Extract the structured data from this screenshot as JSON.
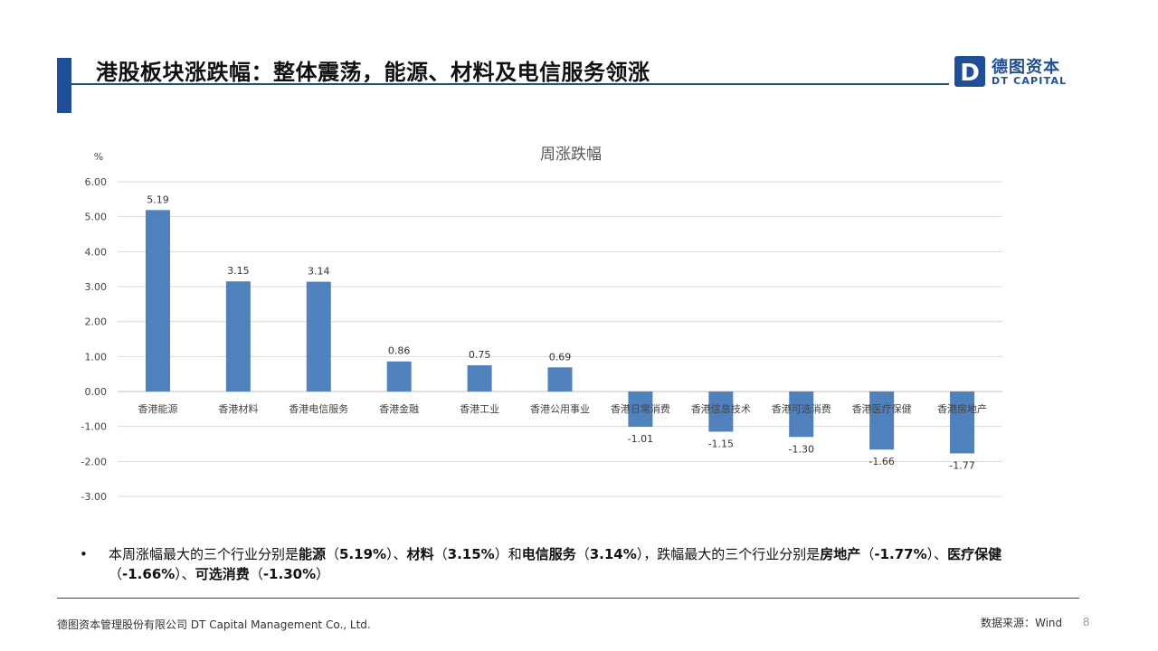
{
  "header": {
    "title": "港股板块涨跌幅：整体震荡，能源、材料及电信服务领涨",
    "logo_mark": "D",
    "logo_cn": "德图资本",
    "logo_en": "DT CAPITAL",
    "accent_color": "#1f4e9a"
  },
  "chart_data": {
    "type": "bar",
    "title": "周涨跌幅",
    "ylabel": "%",
    "xlabel": "",
    "ylim": [
      -3.0,
      6.0
    ],
    "yticks": [
      "6.00",
      "5.00",
      "4.00",
      "3.00",
      "2.00",
      "1.00",
      "0.00",
      "-1.00",
      "-2.00",
      "-3.00"
    ],
    "grid": true,
    "bar_color": "#4f81bd",
    "categories": [
      "香港能源",
      "香港材料",
      "香港电信服务",
      "香港金融",
      "香港工业",
      "香港公用事业",
      "香港日常消费",
      "香港信息技术",
      "香港可选消费",
      "香港医疗保健",
      "香港房地产"
    ],
    "values": [
      5.19,
      3.15,
      3.14,
      0.86,
      0.75,
      0.69,
      -1.01,
      -1.15,
      -1.3,
      -1.66,
      -1.77
    ],
    "data_labels": [
      "5.19",
      "3.15",
      "3.14",
      "0.86",
      "0.75",
      "0.69",
      "-1.01",
      "-1.15",
      "-1.30",
      "-1.66",
      "-1.77"
    ]
  },
  "bullet": {
    "marker": "•",
    "p1": "本周涨幅最大的三个行业分别是",
    "b1": "能源",
    "p2": "（",
    "b2": "5.19%",
    "p3": "）、",
    "b3": "材料",
    "p4": "（",
    "b4": "3.15%",
    "p5": "）和",
    "b5": "电信服务",
    "p6": "（",
    "b6": "3.14%",
    "p7": "），跌幅最大的三个行业分别是",
    "b7": "房地产",
    "p8": "（",
    "b8": "-1.77%",
    "p9": "）、",
    "b9": "医疗保健",
    "p10": "（",
    "b10": "-1.66%",
    "p11": "）、",
    "b11": "可选消费",
    "p12": "（",
    "b12": "-1.30%",
    "p13": "）"
  },
  "footer": {
    "company": "德图资本管理股份有限公司  DT Capital  Management  Co., Ltd.",
    "source": "数据来源：Wind",
    "page": "8"
  }
}
